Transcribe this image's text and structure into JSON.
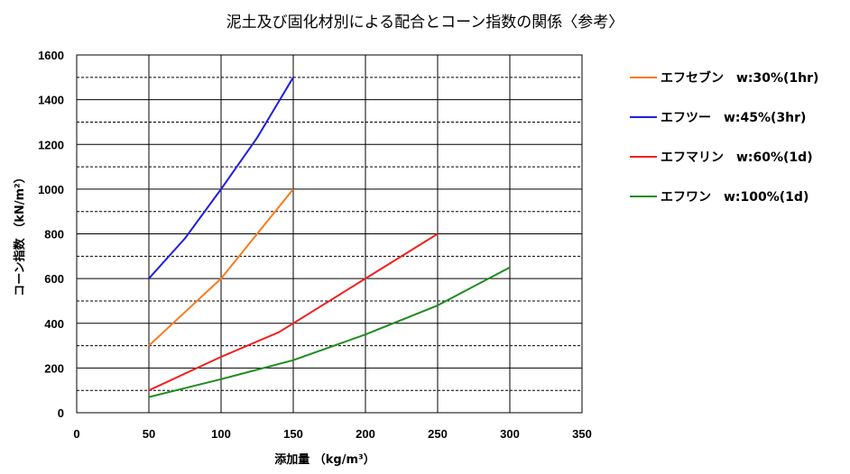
{
  "chart_data": {
    "type": "line",
    "title": "泥土及び固化材別による配合とコーン指数の関係〈参考〉",
    "xlabel": "添加量 （kg/m³）",
    "ylabel": "コーン指数 （kN/m²）",
    "xlim": [
      0,
      350
    ],
    "ylim": [
      0,
      1600
    ],
    "xticks": [
      "0",
      "50",
      "100",
      "150",
      "200",
      "250",
      "300",
      "350"
    ],
    "yticks": [
      "0",
      "200",
      "400",
      "600",
      "800",
      "1000",
      "1200",
      "1400",
      "1600"
    ],
    "grid": "solid major, dashed minor horizontal",
    "legend": "right",
    "series": [
      {
        "name": "エフセブン　w:30%(1hr)",
        "color": "#f97a1e",
        "x": [
          50,
          75,
          100,
          125,
          150
        ],
        "y": [
          300,
          450,
          600,
          800,
          1000
        ]
      },
      {
        "name": "エフツー　w:45%(3hr)",
        "color": "#1f1fe0",
        "x": [
          50,
          75,
          100,
          125,
          150
        ],
        "y": [
          600,
          780,
          1000,
          1230,
          1500
        ]
      },
      {
        "name": "エフマリン　w:60%(1d)",
        "color": "#f21f1f",
        "x": [
          50,
          100,
          140,
          150,
          200,
          250
        ],
        "y": [
          100,
          250,
          360,
          400,
          600,
          800
        ]
      },
      {
        "name": "エフワン　w:100%(1d)",
        "color": "#1e8c1e",
        "x": [
          50,
          75,
          100,
          150,
          200,
          250,
          300
        ],
        "y": [
          70,
          110,
          150,
          235,
          350,
          480,
          650
        ]
      }
    ]
  }
}
